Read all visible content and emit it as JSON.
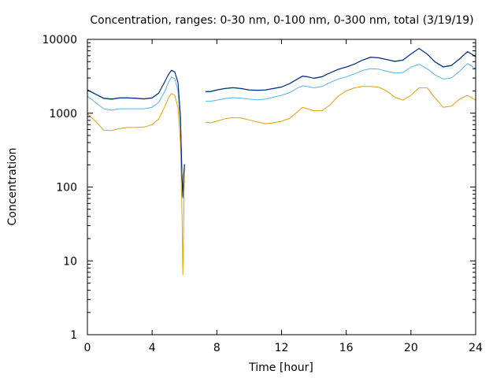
{
  "chart_data": {
    "type": "line",
    "title": "Concentration, ranges: 0-30 nm, 0-100 nm, 0-300 nm, total (3/19/19)",
    "xlabel": "Time [hour]",
    "ylabel": "Concentration",
    "xlim": [
      0,
      24
    ],
    "ylim": [
      1,
      10000
    ],
    "yscale": "log",
    "grid": false,
    "legend": "none",
    "x_ticks": [
      0,
      4,
      8,
      12,
      16,
      20,
      24
    ],
    "x_tick_labels": [
      "0",
      "4",
      "8",
      "12",
      "16",
      "20",
      "24"
    ],
    "y_ticks": [
      1,
      10,
      100,
      1000,
      10000
    ],
    "y_tick_labels": [
      "1",
      "10",
      "100",
      "1000",
      "10000"
    ],
    "series": [
      {
        "color": "#e69f00",
        "points": [
          [
            0,
            980
          ],
          [
            0.5,
            780
          ],
          [
            1,
            590
          ],
          [
            1.5,
            580
          ],
          [
            2,
            620
          ],
          [
            2.5,
            640
          ],
          [
            3,
            640
          ],
          [
            3.5,
            650
          ],
          [
            4,
            700
          ],
          [
            4.4,
            830
          ],
          [
            4.8,
            1250
          ],
          [
            5,
            1600
          ],
          [
            5.2,
            1850
          ],
          [
            5.4,
            1750
          ],
          [
            5.6,
            1200
          ],
          [
            5.75,
            400
          ],
          [
            5.85,
            40
          ],
          [
            5.9,
            6.5
          ],
          [
            5.95,
            30
          ],
          [
            6.0,
            200
          ],
          null,
          [
            7.3,
            760
          ],
          [
            7.6,
            740
          ],
          [
            8,
            780
          ],
          [
            8.5,
            840
          ],
          [
            9,
            870
          ],
          [
            9.5,
            860
          ],
          [
            10,
            810
          ],
          [
            10.5,
            760
          ],
          [
            11,
            720
          ],
          [
            11.5,
            740
          ],
          [
            12,
            780
          ],
          [
            12.5,
            850
          ],
          [
            13,
            1050
          ],
          [
            13.3,
            1200
          ],
          [
            13.6,
            1150
          ],
          [
            14,
            1080
          ],
          [
            14.5,
            1080
          ],
          [
            15,
            1300
          ],
          [
            15.5,
            1700
          ],
          [
            16,
            2000
          ],
          [
            16.5,
            2200
          ],
          [
            17,
            2300
          ],
          [
            17.5,
            2300
          ],
          [
            18,
            2250
          ],
          [
            18.5,
            2000
          ],
          [
            19,
            1650
          ],
          [
            19.5,
            1500
          ],
          [
            20,
            1750
          ],
          [
            20.5,
            2200
          ],
          [
            21,
            2200
          ],
          [
            21.5,
            1600
          ],
          [
            22,
            1200
          ],
          [
            22.5,
            1250
          ],
          [
            23,
            1550
          ],
          [
            23.5,
            1750
          ],
          [
            24,
            1500
          ]
        ]
      },
      {
        "color": "#56b4e9",
        "points": [
          [
            0,
            1700
          ],
          [
            0.5,
            1400
          ],
          [
            1,
            1150
          ],
          [
            1.5,
            1100
          ],
          [
            2,
            1150
          ],
          [
            2.5,
            1150
          ],
          [
            3,
            1150
          ],
          [
            3.5,
            1150
          ],
          [
            4,
            1200
          ],
          [
            4.4,
            1400
          ],
          [
            4.8,
            2000
          ],
          [
            5,
            2600
          ],
          [
            5.2,
            3100
          ],
          [
            5.4,
            2950
          ],
          [
            5.6,
            2000
          ],
          [
            5.75,
            700
          ],
          [
            5.85,
            120
          ],
          [
            5.9,
            70
          ],
          [
            5.95,
            120
          ],
          [
            6.0,
            180
          ],
          null,
          [
            7.3,
            1450
          ],
          [
            7.6,
            1450
          ],
          [
            8,
            1500
          ],
          [
            8.5,
            1580
          ],
          [
            9,
            1620
          ],
          [
            9.5,
            1600
          ],
          [
            10,
            1550
          ],
          [
            10.5,
            1520
          ],
          [
            11,
            1550
          ],
          [
            11.5,
            1650
          ],
          [
            12,
            1750
          ],
          [
            12.5,
            1900
          ],
          [
            13,
            2200
          ],
          [
            13.3,
            2350
          ],
          [
            13.6,
            2300
          ],
          [
            14,
            2200
          ],
          [
            14.5,
            2300
          ],
          [
            15,
            2600
          ],
          [
            15.5,
            2900
          ],
          [
            16,
            3100
          ],
          [
            16.5,
            3400
          ],
          [
            17,
            3800
          ],
          [
            17.5,
            4000
          ],
          [
            18,
            3950
          ],
          [
            18.5,
            3700
          ],
          [
            19,
            3500
          ],
          [
            19.5,
            3550
          ],
          [
            20,
            4200
          ],
          [
            20.5,
            4600
          ],
          [
            21,
            4000
          ],
          [
            21.5,
            3300
          ],
          [
            22,
            2900
          ],
          [
            22.5,
            3000
          ],
          [
            23,
            3700
          ],
          [
            23.5,
            4700
          ],
          [
            24,
            4000
          ]
        ]
      },
      {
        "color": "#009e73",
        "points": [
          [
            0,
            2050
          ],
          [
            0.5,
            1800
          ],
          [
            1,
            1580
          ],
          [
            1.5,
            1540
          ],
          [
            2,
            1600
          ],
          [
            2.5,
            1600
          ],
          [
            3,
            1580
          ],
          [
            3.5,
            1550
          ],
          [
            4,
            1600
          ],
          [
            4.4,
            1850
          ],
          [
            4.8,
            2700
          ],
          [
            5,
            3300
          ],
          [
            5.2,
            3800
          ],
          [
            5.4,
            3600
          ],
          [
            5.6,
            2600
          ],
          [
            5.75,
            900
          ],
          [
            5.85,
            130
          ],
          [
            5.9,
            72
          ],
          [
            5.95,
            140
          ],
          [
            6.0,
            200
          ],
          null,
          [
            7.3,
            1950
          ],
          [
            7.6,
            1950
          ],
          [
            8,
            2050
          ],
          [
            8.5,
            2150
          ],
          [
            9,
            2200
          ],
          [
            9.5,
            2150
          ],
          [
            10,
            2050
          ],
          [
            10.5,
            2030
          ],
          [
            11,
            2050
          ],
          [
            11.5,
            2150
          ],
          [
            12,
            2250
          ],
          [
            12.5,
            2500
          ],
          [
            13,
            2900
          ],
          [
            13.3,
            3150
          ],
          [
            13.6,
            3100
          ],
          [
            14,
            2950
          ],
          [
            14.5,
            3100
          ],
          [
            15,
            3500
          ],
          [
            15.5,
            3900
          ],
          [
            16,
            4200
          ],
          [
            16.5,
            4600
          ],
          [
            17,
            5200
          ],
          [
            17.5,
            5700
          ],
          [
            18,
            5600
          ],
          [
            18.5,
            5300
          ],
          [
            19,
            5000
          ],
          [
            19.5,
            5200
          ],
          [
            20,
            6300
          ],
          [
            20.5,
            7500
          ],
          [
            21,
            6300
          ],
          [
            21.5,
            4900
          ],
          [
            22,
            4200
          ],
          [
            22.5,
            4400
          ],
          [
            23,
            5400
          ],
          [
            23.5,
            6800
          ],
          [
            24,
            5800
          ]
        ]
      },
      {
        "color": "#0a1a8a",
        "points": [
          [
            0,
            2080
          ],
          [
            0.5,
            1820
          ],
          [
            1,
            1600
          ],
          [
            1.5,
            1560
          ],
          [
            2,
            1620
          ],
          [
            2.5,
            1620
          ],
          [
            3,
            1600
          ],
          [
            3.5,
            1570
          ],
          [
            4,
            1620
          ],
          [
            4.4,
            1870
          ],
          [
            4.8,
            2720
          ],
          [
            5,
            3330
          ],
          [
            5.2,
            3830
          ],
          [
            5.4,
            3630
          ],
          [
            5.6,
            2620
          ],
          [
            5.75,
            910
          ],
          [
            5.85,
            135
          ],
          [
            5.9,
            74
          ],
          [
            5.95,
            145
          ],
          [
            6.0,
            205
          ],
          null,
          [
            7.3,
            1970
          ],
          [
            7.6,
            1970
          ],
          [
            8,
            2070
          ],
          [
            8.5,
            2170
          ],
          [
            9,
            2220
          ],
          [
            9.5,
            2170
          ],
          [
            10,
            2070
          ],
          [
            10.5,
            2050
          ],
          [
            11,
            2070
          ],
          [
            11.5,
            2170
          ],
          [
            12,
            2270
          ],
          [
            12.5,
            2520
          ],
          [
            13,
            2930
          ],
          [
            13.3,
            3180
          ],
          [
            13.6,
            3130
          ],
          [
            14,
            2980
          ],
          [
            14.5,
            3130
          ],
          [
            15,
            3530
          ],
          [
            15.5,
            3930
          ],
          [
            16,
            4230
          ],
          [
            16.5,
            4640
          ],
          [
            17,
            5240
          ],
          [
            17.5,
            5750
          ],
          [
            18,
            5650
          ],
          [
            18.5,
            5350
          ],
          [
            19,
            5050
          ],
          [
            19.5,
            5250
          ],
          [
            20,
            6350
          ],
          [
            20.5,
            7550
          ],
          [
            21,
            6350
          ],
          [
            21.5,
            4950
          ],
          [
            22,
            4250
          ],
          [
            22.5,
            4450
          ],
          [
            23,
            5450
          ],
          [
            23.5,
            6850
          ],
          [
            24,
            5850
          ]
        ]
      }
    ]
  }
}
